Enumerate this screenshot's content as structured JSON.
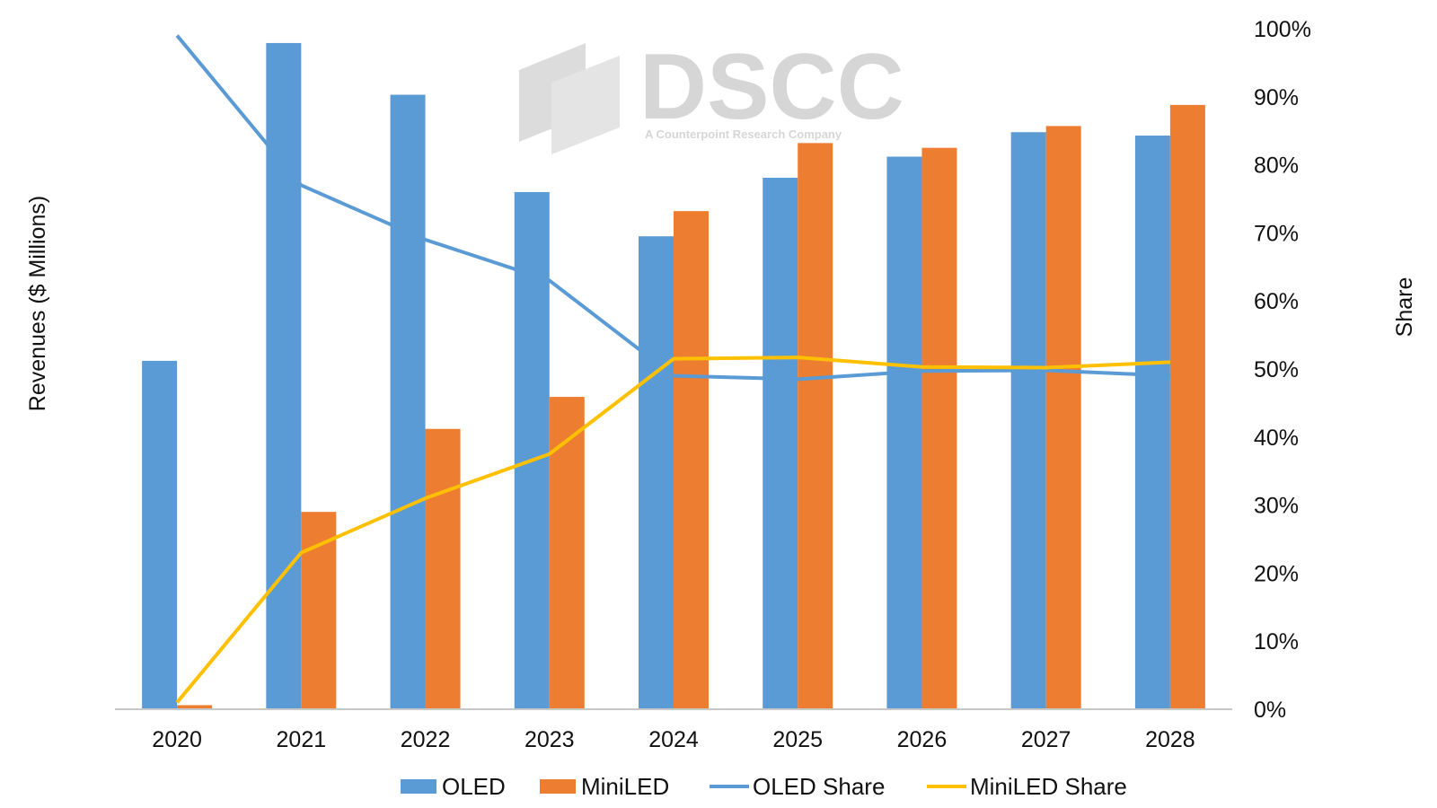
{
  "watermark": {
    "brand": "DSCC",
    "tagline": "A Counterpoint Research Company"
  },
  "chart_data": {
    "type": "bar",
    "title": "",
    "xlabel": "",
    "ylabel": "Revenues ($ Millions)",
    "y2label": "Share",
    "categories": [
      "2020",
      "2021",
      "2022",
      "2023",
      "2024",
      "2025",
      "2026",
      "2027",
      "2028"
    ],
    "bar_scale_fraction_of_plot_height": true,
    "series": [
      {
        "name": "OLED",
        "kind": "bar",
        "axis": "left",
        "color": "#5b9bd5",
        "values": [
          0.512,
          0.979,
          0.903,
          0.76,
          0.695,
          0.781,
          0.812,
          0.848,
          0.843
        ]
      },
      {
        "name": "MiniLED",
        "kind": "bar",
        "axis": "left",
        "color": "#ed7d31",
        "values": [
          0.006,
          0.29,
          0.412,
          0.459,
          0.732,
          0.832,
          0.825,
          0.857,
          0.888
        ]
      },
      {
        "name": "OLED Share",
        "kind": "line",
        "axis": "right",
        "color": "#5b9bd5",
        "values": [
          0.99,
          0.77,
          0.69,
          0.63,
          0.49,
          0.485,
          0.497,
          0.498,
          0.49
        ]
      },
      {
        "name": "MiniLED Share",
        "kind": "line",
        "axis": "right",
        "color": "#ffc000",
        "values": [
          0.01,
          0.23,
          0.31,
          0.375,
          0.515,
          0.517,
          0.503,
          0.502,
          0.51
        ]
      }
    ],
    "y2lim": [
      0,
      1
    ],
    "y2ticks": [
      "0%",
      "10%",
      "20%",
      "30%",
      "40%",
      "50%",
      "60%",
      "70%",
      "80%",
      "90%",
      "100%"
    ],
    "grid": false,
    "legend_position": "bottom"
  }
}
